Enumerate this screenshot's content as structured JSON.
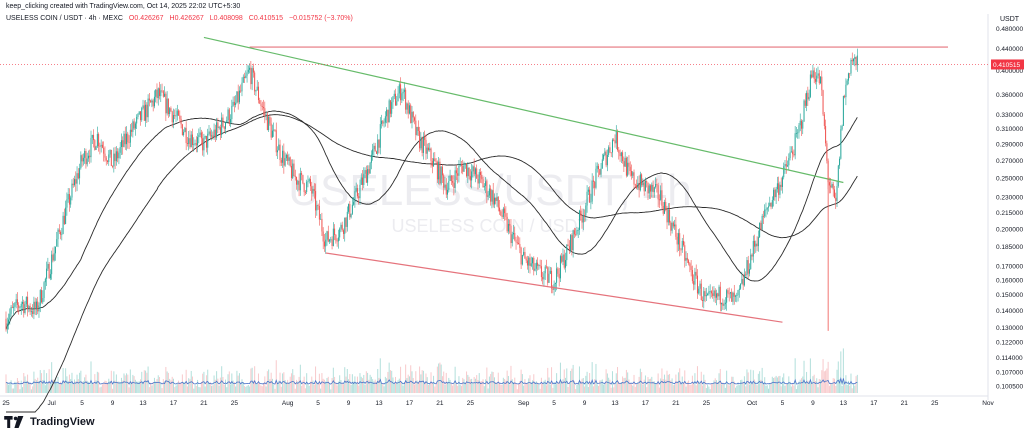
{
  "header": {
    "credit": "keep_clicking created with TradingView.com, Oct 14, 2025 22:02 UTC+5:30",
    "symbol": "USELESS COIN / USDT · 4h · MEXC",
    "ohlc": {
      "open": "O0.426267",
      "high": "H0.426267",
      "low": "L0.408098",
      "close": "C0.410515",
      "change": "−0.015752 (−3.70%)"
    }
  },
  "watermark": {
    "big": "USELESS/USDT, 4h",
    "small": "USELESS COIN / USDT"
  },
  "footer": {
    "brand": "TradingView"
  },
  "colors": {
    "up": "#26a69a",
    "down": "#ef5350",
    "resistance": "#e5737c",
    "trend": "#66bb6a",
    "ma": "#2b2b2b",
    "vol_line": "#4a74c9",
    "price_tag": "#f23645"
  },
  "chart_data": {
    "type": "candlestick",
    "timeframe": "4h",
    "y_axis": {
      "unit": "USDT",
      "scale": "log",
      "ticks": [
        "0.480000",
        "0.440000",
        "0.400000",
        "0.360000",
        "0.330000",
        "0.310000",
        "0.290000",
        "0.270000",
        "0.250000",
        "0.230000",
        "0.215000",
        "0.200000",
        "0.185000",
        "0.170000",
        "0.160000",
        "0.150000",
        "0.140000",
        "0.130000",
        "0.122000",
        "0.114000",
        "0.107000",
        "0.100500"
      ],
      "current_price": "0.410515"
    },
    "x_axis": {
      "ticks": [
        "25",
        "Jul",
        "5",
        "9",
        "13",
        "17",
        "21",
        "25",
        "Aug",
        "5",
        "9",
        "13",
        "17",
        "21",
        "25",
        "Sep",
        "5",
        "9",
        "13",
        "17",
        "21",
        "25",
        "Oct",
        "5",
        "9",
        "13",
        "17",
        "21",
        "25",
        "Nov"
      ],
      "range": [
        "2025-06-25",
        "2025-11-01"
      ]
    },
    "price_path": [
      [
        "2025-06-25",
        0.135
      ],
      [
        "2025-06-27",
        0.145
      ],
      [
        "2025-06-29",
        0.14
      ],
      [
        "2025-07-01",
        0.175
      ],
      [
        "2025-07-03",
        0.22
      ],
      [
        "2025-07-05",
        0.27
      ],
      [
        "2025-07-07",
        0.3
      ],
      [
        "2025-07-09",
        0.265
      ],
      [
        "2025-07-11",
        0.3
      ],
      [
        "2025-07-13",
        0.33
      ],
      [
        "2025-07-15",
        0.36
      ],
      [
        "2025-07-17",
        0.33
      ],
      [
        "2025-07-19",
        0.3
      ],
      [
        "2025-07-21",
        0.29
      ],
      [
        "2025-07-23",
        0.31
      ],
      [
        "2025-07-25",
        0.34
      ],
      [
        "2025-07-27",
        0.4
      ],
      [
        "2025-07-29",
        0.33
      ],
      [
        "2025-07-31",
        0.28
      ],
      [
        "2025-08-02",
        0.25
      ],
      [
        "2025-08-04",
        0.24
      ],
      [
        "2025-08-06",
        0.19
      ],
      [
        "2025-08-08",
        0.2
      ],
      [
        "2025-08-10",
        0.23
      ],
      [
        "2025-08-12",
        0.27
      ],
      [
        "2025-08-14",
        0.33
      ],
      [
        "2025-08-16",
        0.37
      ],
      [
        "2025-08-18",
        0.3
      ],
      [
        "2025-08-20",
        0.27
      ],
      [
        "2025-08-22",
        0.24
      ],
      [
        "2025-08-24",
        0.265
      ],
      [
        "2025-08-26",
        0.25
      ],
      [
        "2025-08-28",
        0.23
      ],
      [
        "2025-08-30",
        0.2
      ],
      [
        "2025-09-01",
        0.175
      ],
      [
        "2025-09-03",
        0.165
      ],
      [
        "2025-09-05",
        0.16
      ],
      [
        "2025-09-07",
        0.185
      ],
      [
        "2025-09-09",
        0.22
      ],
      [
        "2025-09-11",
        0.26
      ],
      [
        "2025-09-13",
        0.3
      ],
      [
        "2025-09-15",
        0.25
      ],
      [
        "2025-09-17",
        0.24
      ],
      [
        "2025-09-19",
        0.23
      ],
      [
        "2025-09-21",
        0.195
      ],
      [
        "2025-09-23",
        0.165
      ],
      [
        "2025-09-25",
        0.145
      ],
      [
        "2025-09-27",
        0.15
      ],
      [
        "2025-09-29",
        0.145
      ],
      [
        "2025-10-01",
        0.18
      ],
      [
        "2025-10-03",
        0.22
      ],
      [
        "2025-10-05",
        0.25
      ],
      [
        "2025-10-07",
        0.3
      ],
      [
        "2025-10-09",
        0.4
      ],
      [
        "2025-10-10",
        0.38
      ],
      [
        "2025-10-11",
        0.25
      ],
      [
        "2025-10-12",
        0.22
      ],
      [
        "2025-10-13",
        0.35
      ],
      [
        "2025-10-14",
        0.42
      ],
      [
        "2025-10-14T20",
        0.41
      ]
    ],
    "drawings": {
      "resistance_level": 0.443,
      "descending_upper_trendline": [
        [
          "2025-07-21",
          0.462
        ],
        [
          "2025-10-13",
          0.245
        ]
      ],
      "descending_lower_trendline": [
        [
          "2025-08-06",
          0.18
        ],
        [
          "2025-10-05",
          0.133
        ]
      ],
      "wick_low": 0.128
    },
    "indicators": [
      "Moving average (short)",
      "Moving average (long)",
      "Volume"
    ]
  }
}
